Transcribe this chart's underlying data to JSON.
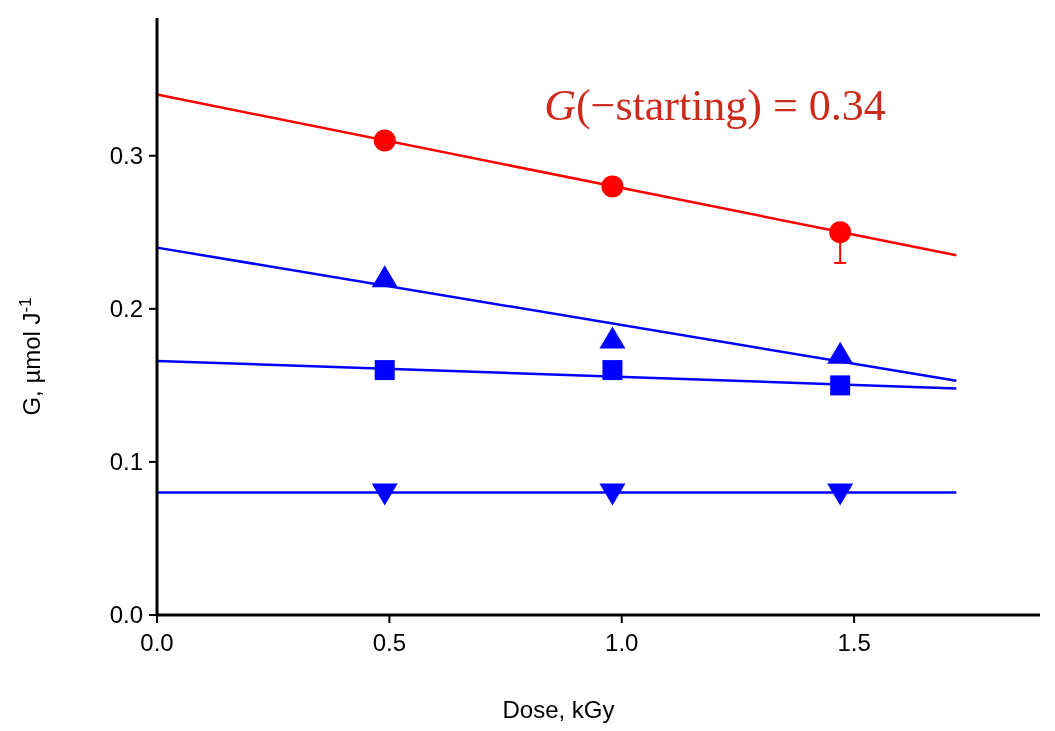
{
  "chart_data": {
    "type": "scatter",
    "xlabel": "Dose, kGy",
    "ylabel": "G, µmol J$^{-1}$",
    "xlim": [
      0,
      1.9
    ],
    "ylim": [
      0,
      0.39
    ],
    "xticks": [
      {
        "value": 0,
        "label": "0.0"
      },
      0.5,
      {
        "value": 1,
        "label": "1.0"
      },
      1.5
    ],
    "yticks": [
      {
        "value": 0,
        "label": "0.0"
      },
      0.1,
      0.2,
      0.3
    ],
    "grid": false,
    "series": [
      {
        "marker": "circle",
        "color": "#ff0000",
        "x": [
          0.49,
          0.98,
          1.47
        ],
        "values": [
          0.31,
          0.28,
          0.25
        ],
        "errors": [
          null,
          null,
          [
            0.23,
            0.25
          ]
        ]
      },
      {
        "marker": "triangle",
        "color": "#0000ff",
        "x": [
          0.49,
          0.98,
          1.47
        ],
        "values": [
          0.22,
          0.18,
          0.17
        ]
      },
      {
        "marker": "square",
        "color": "#0000ff",
        "x": [
          0.49,
          0.98,
          1.47
        ],
        "values": [
          0.16,
          0.16,
          0.15
        ]
      },
      {
        "marker": "triangle-down",
        "color": "#0000ff",
        "x": [
          0.49,
          0.98,
          1.47
        ],
        "values": [
          0.08,
          0.08,
          0.08
        ]
      },
      {
        "type": "line",
        "color": "#ff0000",
        "x": [
          0,
          1.72
        ],
        "values": [
          0.34,
          0.235
        ]
      },
      {
        "type": "line",
        "color": "#0000ff",
        "x": [
          0,
          1.72
        ],
        "values": [
          0.24,
          0.153
        ]
      },
      {
        "type": "line",
        "color": "#0000ff",
        "x": [
          0,
          1.72
        ],
        "values": [
          0.166,
          0.148
        ]
      },
      {
        "type": "line",
        "color": "#0000ff",
        "x": [
          0,
          1.72
        ],
        "values": [
          0.08,
          0.08
        ]
      }
    ],
    "annotations": [
      "G(−starting) = 0.34"
    ]
  }
}
